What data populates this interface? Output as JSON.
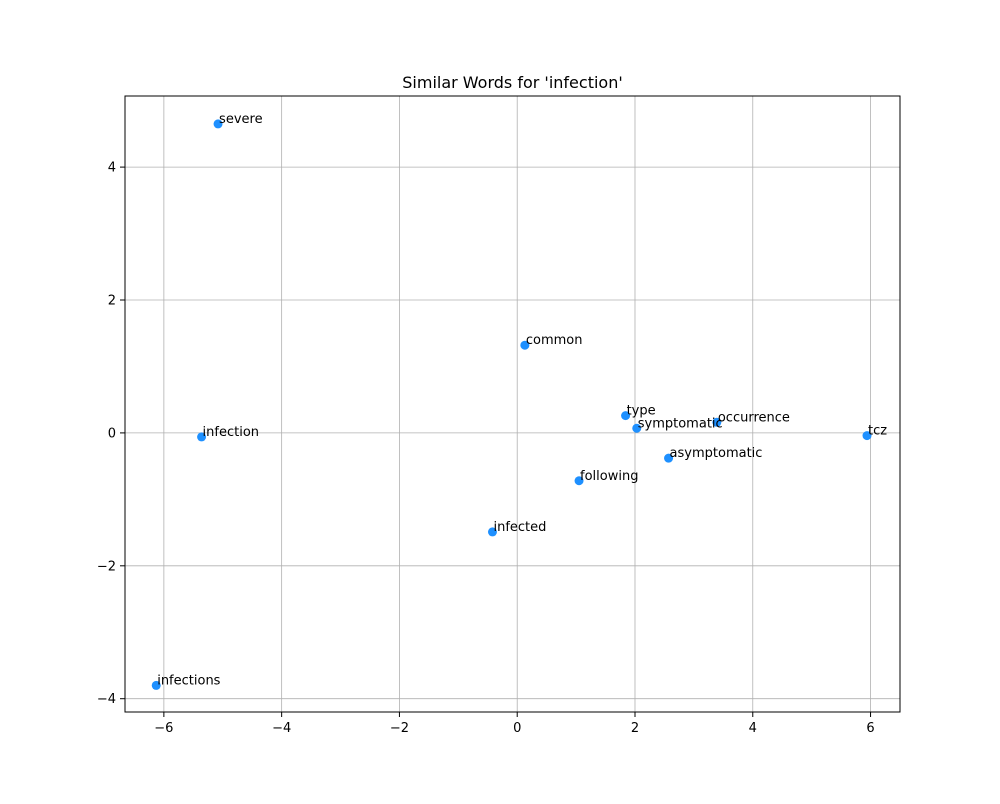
{
  "chart_data": {
    "type": "scatter",
    "title": "Similar Words for 'infection'",
    "xlabel": "",
    "ylabel": "",
    "xlim": [
      -6.66,
      6.5
    ],
    "ylim": [
      -4.2,
      5.07
    ],
    "xticks": [
      -6,
      -4,
      -2,
      0,
      2,
      4,
      6
    ],
    "yticks": [
      -4,
      -2,
      0,
      2,
      4
    ],
    "xtick_labels": [
      "−6",
      "−4",
      "−2",
      "0",
      "2",
      "4",
      "6"
    ],
    "ytick_labels": [
      "−4",
      "−2",
      "0",
      "2",
      "4"
    ],
    "grid": true,
    "point_color": "#1e90ff",
    "points": [
      {
        "label": "severe",
        "x": -5.08,
        "y": 4.65
      },
      {
        "label": "common",
        "x": 0.13,
        "y": 1.32
      },
      {
        "label": "type",
        "x": 1.84,
        "y": 0.26
      },
      {
        "label": "occurrence",
        "x": 3.39,
        "y": 0.16
      },
      {
        "label": "symptomatic",
        "x": 2.03,
        "y": 0.07
      },
      {
        "label": "infection",
        "x": -5.36,
        "y": -0.06
      },
      {
        "label": "tcz",
        "x": 5.94,
        "y": -0.04
      },
      {
        "label": "asymptomatic",
        "x": 2.57,
        "y": -0.38
      },
      {
        "label": "following",
        "x": 1.05,
        "y": -0.72
      },
      {
        "label": "infected",
        "x": -0.42,
        "y": -1.49
      },
      {
        "label": "infections",
        "x": -6.13,
        "y": -3.8
      }
    ]
  }
}
